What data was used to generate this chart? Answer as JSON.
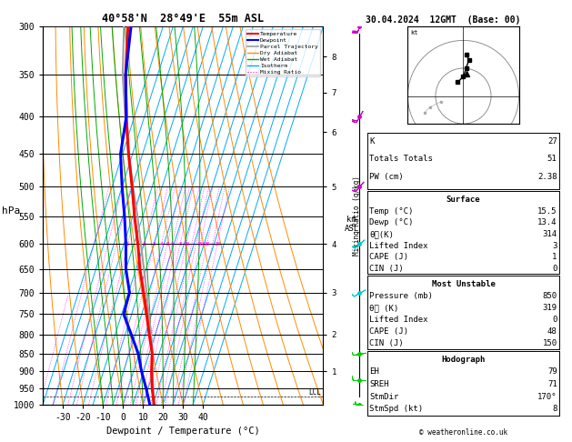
{
  "title_skew": "40°58'N  28°49'E  55m ASL",
  "title_right": "30.04.2024  12GMT  (Base: 00)",
  "xlabel": "Dewpoint / Temperature (°C)",
  "ylabel_left": "hPa",
  "pressure_levels": [
    300,
    350,
    400,
    450,
    500,
    550,
    600,
    650,
    700,
    750,
    800,
    850,
    900,
    950,
    1000
  ],
  "temp_xlim": [
    -40,
    40
  ],
  "temp_xticks": [
    -30,
    -20,
    -10,
    0,
    10,
    20,
    30,
    40
  ],
  "isotherm_temps": [
    -40,
    -35,
    -30,
    -25,
    -20,
    -15,
    -10,
    -5,
    0,
    5,
    10,
    15,
    20,
    25,
    30,
    35,
    40
  ],
  "dry_adiabat_thetas": [
    -30,
    -20,
    -10,
    0,
    10,
    20,
    30,
    40,
    50,
    60,
    70,
    80,
    90,
    100,
    110
  ],
  "wet_adiabat_base_temps": [
    -10,
    -5,
    0,
    5,
    10,
    15,
    20,
    25,
    30,
    35
  ],
  "mixing_ratio_values": [
    0.1,
    0.2,
    0.4,
    0.6,
    1,
    2,
    3,
    4,
    5,
    6,
    7,
    8,
    10,
    12,
    14,
    16,
    20,
    24,
    28
  ],
  "mixing_ratio_label_vals": [
    1,
    2,
    3,
    4,
    5,
    6,
    8,
    10,
    16,
    20,
    28
  ],
  "temperature_profile_p": [
    1000,
    950,
    900,
    850,
    800,
    750,
    700,
    650,
    600,
    550,
    500,
    450,
    400,
    350,
    300
  ],
  "temperature_profile_t": [
    15.5,
    12.0,
    9.0,
    6.5,
    2.0,
    -2.5,
    -7.5,
    -13.0,
    -18.0,
    -24.0,
    -30.0,
    -37.0,
    -44.0,
    -51.0,
    -57.5
  ],
  "dewpoint_profile_p": [
    1000,
    950,
    900,
    850,
    800,
    750,
    700,
    650,
    600,
    550,
    500,
    450,
    400,
    350,
    300
  ],
  "dewpoint_profile_t": [
    13.4,
    9.0,
    4.0,
    -0.5,
    -7.0,
    -14.0,
    -14.5,
    -20.0,
    -24.0,
    -29.0,
    -35.0,
    -41.0,
    -44.0,
    -51.0,
    -56.0
  ],
  "parcel_profile_p": [
    1000,
    950,
    900,
    850,
    800,
    750,
    700,
    650,
    600,
    550,
    500,
    450,
    400,
    350,
    300
  ],
  "parcel_profile_t": [
    15.5,
    12.5,
    9.5,
    6.5,
    3.0,
    -1.5,
    -6.0,
    -11.0,
    -16.5,
    -22.5,
    -29.5,
    -37.0,
    -44.5,
    -52.5,
    -59.5
  ],
  "lcl_pressure": 975,
  "km_ticks": [
    1,
    2,
    3,
    4,
    5,
    6,
    7,
    8
  ],
  "km_pressures": [
    900,
    800,
    700,
    600,
    500,
    420,
    370,
    330
  ],
  "skew_factor": 1.0,
  "colors": {
    "temperature": "#ff0000",
    "dewpoint": "#0000ff",
    "parcel": "#a0a0a0",
    "dry_adiabat": "#ff8c00",
    "wet_adiabat": "#00aa00",
    "isotherm": "#00aaff",
    "mixing_ratio": "#ff00ff",
    "background": "#ffffff",
    "grid": "#000000"
  },
  "stats": {
    "K": 27,
    "Totals_Totals": 51,
    "PW_cm": 2.38,
    "Surface_Temp": 15.5,
    "Surface_Dewp": 13.4,
    "Surface_theta_e": 314,
    "Surface_LI": 3,
    "Surface_CAPE": 1,
    "Surface_CIN": 0,
    "MU_Pressure": 850,
    "MU_theta_e": 319,
    "MU_LI": 0,
    "MU_CAPE": 48,
    "MU_CIN": 150,
    "EH": 79,
    "SREH": 71,
    "StmDir": "170°",
    "StmSpd": 8
  },
  "hodo_u": [
    -2,
    0,
    1,
    2,
    1
  ],
  "hodo_v": [
    5,
    7,
    10,
    13,
    15
  ],
  "storm_u": 1,
  "storm_v": 8,
  "barb_pressures": [
    300,
    400,
    500,
    600,
    700,
    850,
    925,
    1000
  ],
  "barb_speeds": [
    20,
    18,
    16,
    14,
    12,
    10,
    8,
    5
  ],
  "barb_dirs": [
    200,
    210,
    220,
    230,
    240,
    260,
    270,
    280
  ]
}
